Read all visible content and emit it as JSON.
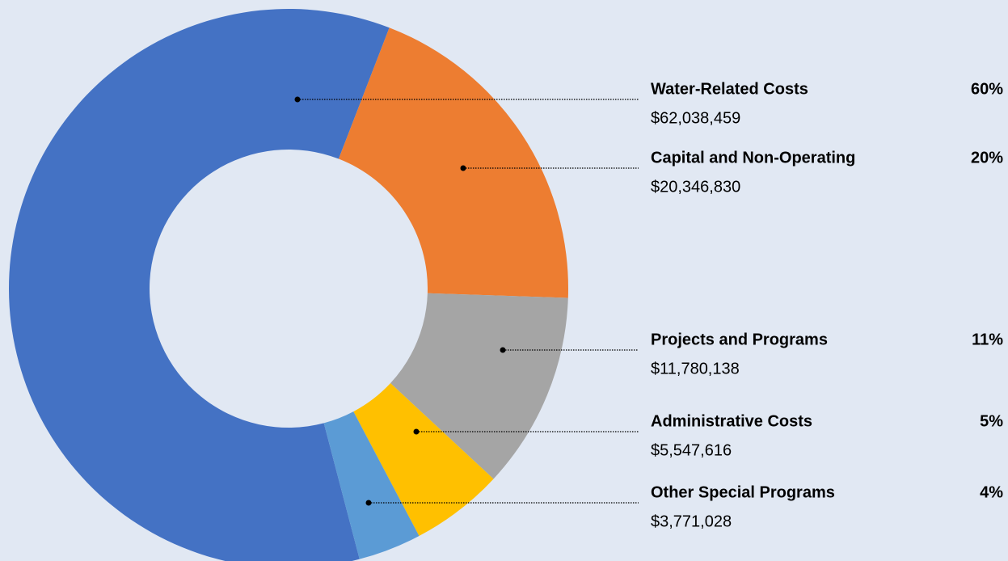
{
  "chart_data": {
    "type": "donut",
    "categories": [
      "Water-Related Costs",
      "Capital and Non-Operating",
      "Projects and Programs",
      "Administrative Costs",
      "Other Special Programs"
    ],
    "values": [
      62038459,
      20346830,
      11780138,
      5547616,
      3771028
    ],
    "value_labels": [
      "$62,038,459",
      "$20,346,830",
      "$11,780,138",
      "$5,547,616",
      "$3,771,028"
    ],
    "percent_labels": [
      "60%",
      "20%",
      "11%",
      "5%",
      "4%"
    ],
    "colors": [
      "#4472c4",
      "#ed7d31",
      "#a5a5a5",
      "#ffc000",
      "#5b9bd5"
    ]
  }
}
